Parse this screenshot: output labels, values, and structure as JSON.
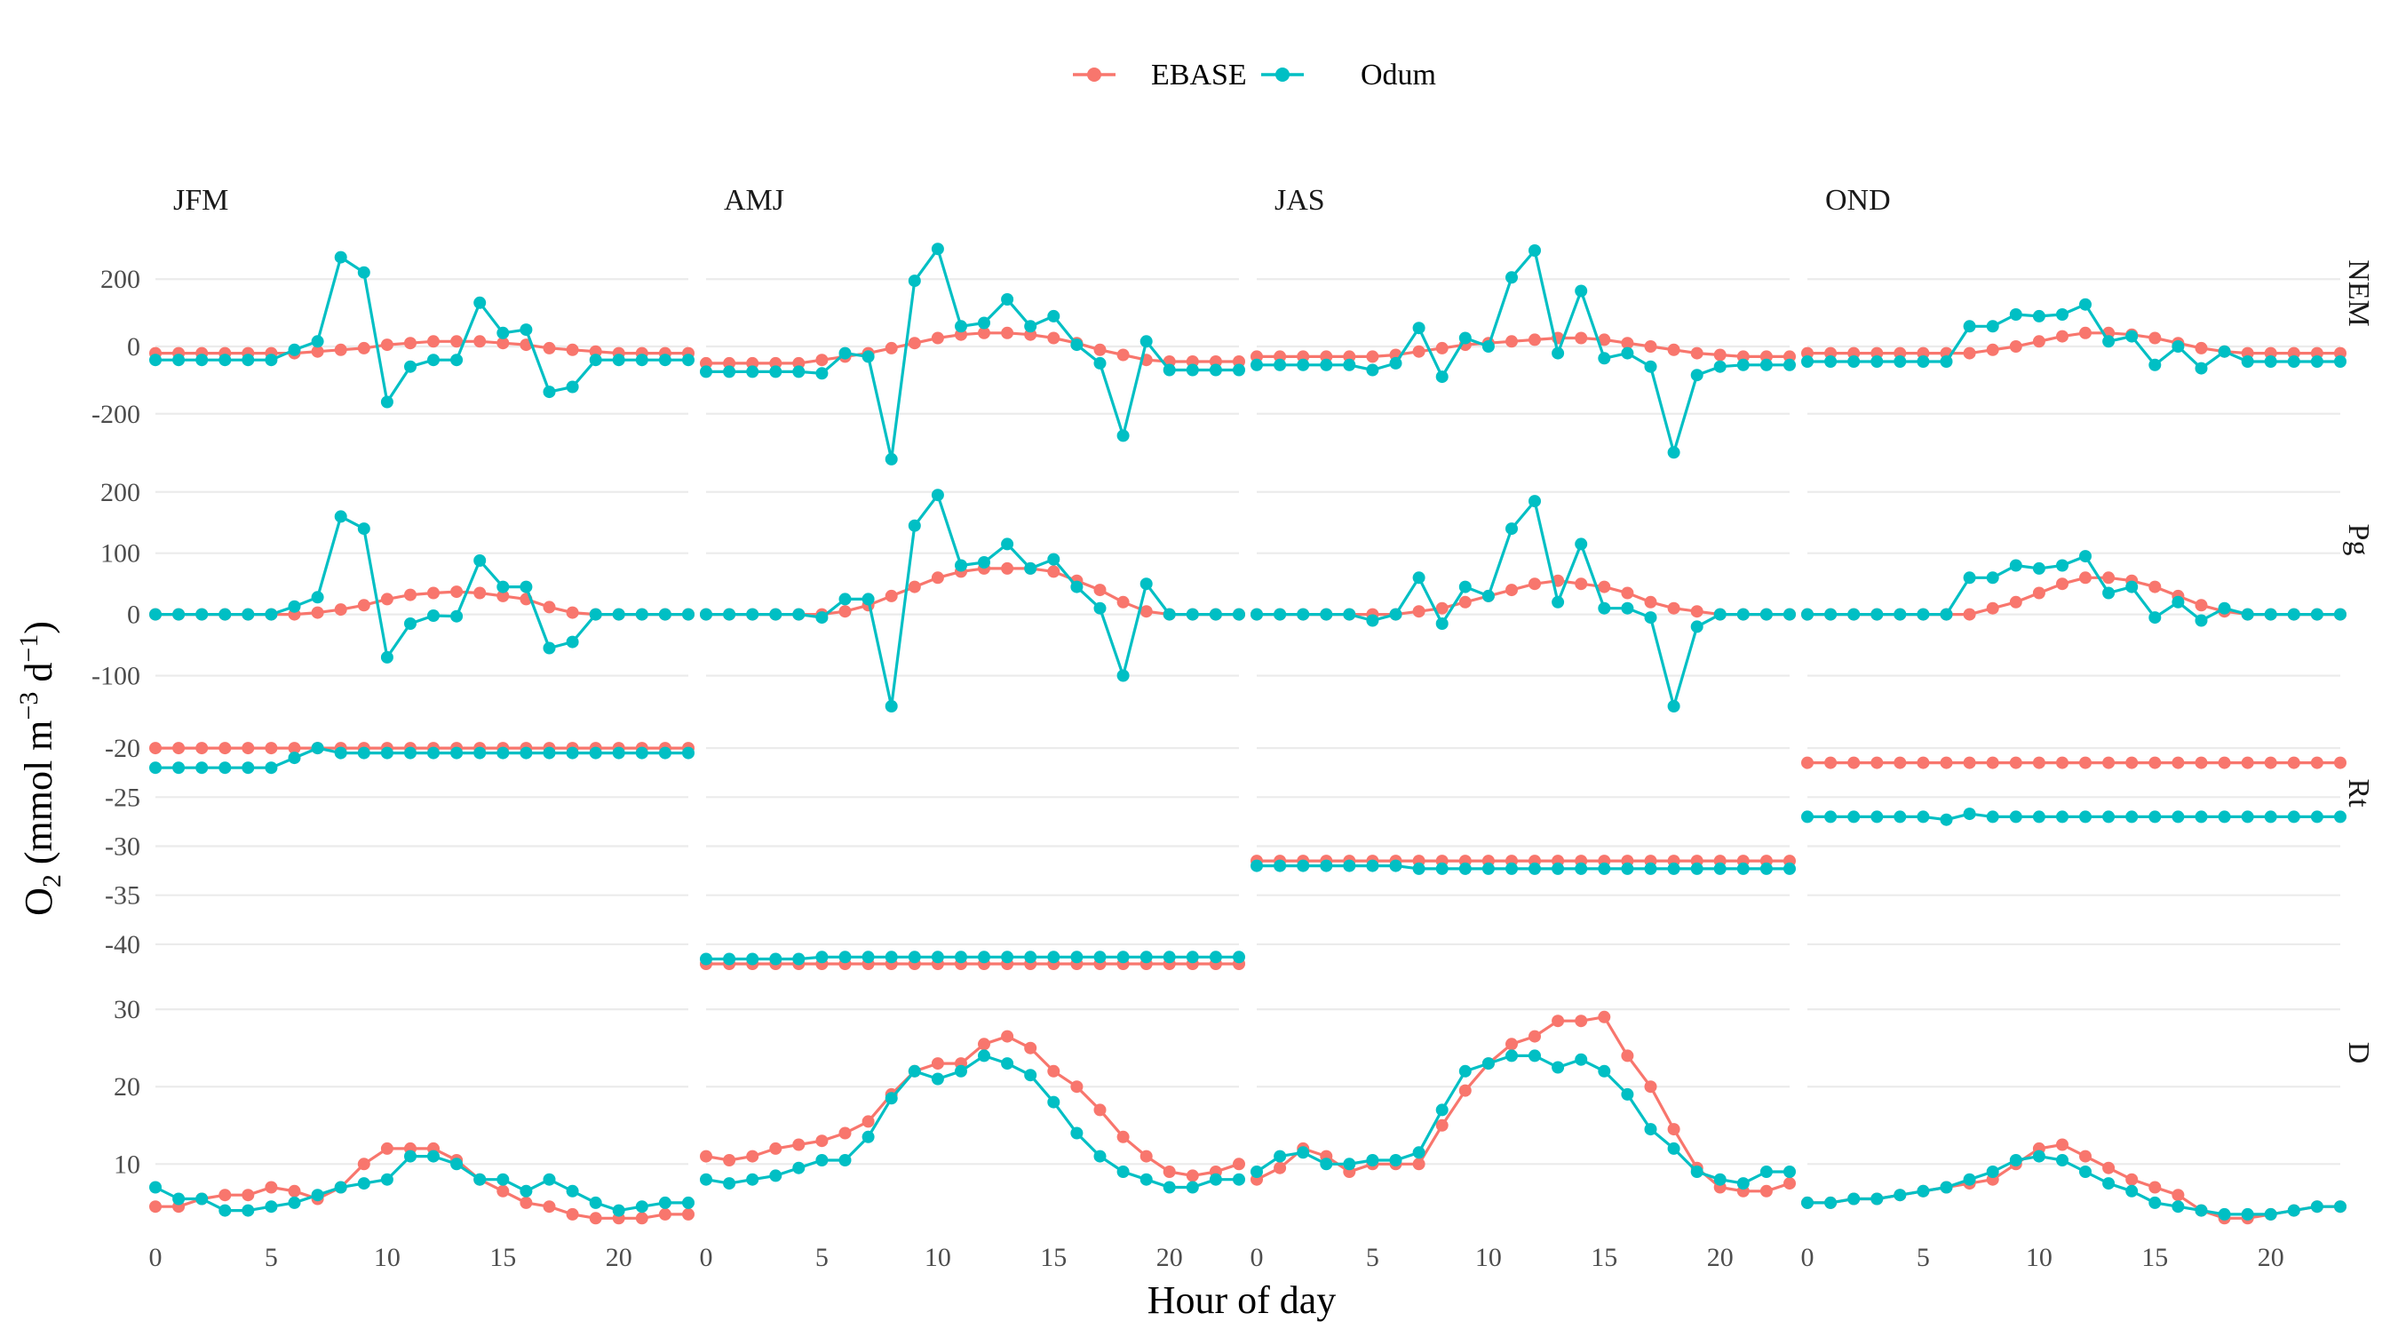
{
  "chart_data": {
    "type": "line",
    "legend": {
      "position": "top",
      "entries": [
        "EBASE",
        "Odum"
      ]
    },
    "colors": {
      "EBASE": "#F8766D",
      "Odum": "#00BFC4"
    },
    "xlabel": "Hour of day",
    "ylabel": "O2 (mmol m-3 d-1)",
    "ylabel_parts": {
      "o": "O",
      "sub": "2",
      "mid": " (mmol m",
      "sup1": "−3",
      "d": " d",
      "sup2": "−1",
      "close": ")"
    },
    "xlim": [
      0,
      23
    ],
    "x_ticks": [
      "0",
      "5",
      "10",
      "15",
      "20"
    ],
    "x": [
      0,
      1,
      2,
      3,
      4,
      5,
      6,
      7,
      8,
      9,
      10,
      11,
      12,
      13,
      14,
      15,
      16,
      17,
      18,
      19,
      20,
      21,
      22,
      23
    ],
    "columns": [
      "JFM",
      "AMJ",
      "JAS",
      "OND"
    ],
    "rows": [
      {
        "label": "NEM",
        "ylim": [
          -330,
          330
        ],
        "ticks": [
          200,
          0,
          -200
        ],
        "tick_labels": [
          "200",
          "0",
          "-200"
        ]
      },
      {
        "label": "Pg",
        "ylim": [
          -150,
          220
        ],
        "ticks": [
          200,
          100,
          0,
          -100
        ],
        "tick_labels": [
          "200",
          "100",
          "0",
          "-100"
        ]
      },
      {
        "label": "Rt",
        "ylim": [
          -42,
          -18
        ],
        "ticks": [
          -20,
          -25,
          -30,
          -35,
          -40
        ],
        "tick_labels": [
          "-20",
          "-25",
          "-30",
          "-35",
          "-40"
        ]
      },
      {
        "label": "D",
        "ylim": [
          2,
          33
        ],
        "ticks": [
          30,
          20,
          10
        ],
        "tick_labels": [
          "30",
          "20",
          "10"
        ]
      }
    ],
    "panels": {
      "NEM": {
        "JFM": {
          "EBASE": [
            -20,
            -20,
            -20,
            -20,
            -20,
            -20,
            -20,
            -15,
            -10,
            -5,
            5,
            10,
            15,
            15,
            15,
            10,
            5,
            -5,
            -10,
            -15,
            -20,
            -20,
            -20,
            -20
          ],
          "Odum": [
            -40,
            -40,
            -40,
            -40,
            -40,
            -40,
            -10,
            15,
            265,
            220,
            -165,
            -60,
            -40,
            -40,
            130,
            40,
            50,
            -135,
            -120,
            -40,
            -40,
            -40,
            -40,
            -40
          ]
        },
        "AMJ": {
          "EBASE": [
            -50,
            -50,
            -50,
            -50,
            -50,
            -40,
            -30,
            -20,
            -5,
            10,
            25,
            35,
            40,
            40,
            35,
            25,
            10,
            -10,
            -25,
            -40,
            -45,
            -45,
            -45,
            -45
          ],
          "Odum": [
            -75,
            -75,
            -75,
            -75,
            -75,
            -80,
            -20,
            -30,
            -335,
            195,
            290,
            60,
            70,
            140,
            60,
            90,
            5,
            -50,
            -265,
            15,
            -70,
            -70,
            -70,
            -70
          ]
        },
        "JAS": {
          "EBASE": [
            -30,
            -30,
            -30,
            -30,
            -30,
            -30,
            -25,
            -15,
            -5,
            5,
            10,
            15,
            20,
            25,
            25,
            20,
            10,
            0,
            -10,
            -20,
            -25,
            -30,
            -30,
            -30
          ],
          "Odum": [
            -55,
            -55,
            -55,
            -55,
            -55,
            -70,
            -50,
            55,
            -90,
            25,
            0,
            205,
            285,
            -20,
            165,
            -35,
            -20,
            -60,
            -315,
            -85,
            -60,
            -55,
            -55,
            -55
          ],
          "Odum_note": ""
        },
        "OND": {
          "EBASE": [
            -20,
            -20,
            -20,
            -20,
            -20,
            -20,
            -20,
            -20,
            -10,
            0,
            15,
            30,
            40,
            40,
            35,
            25,
            10,
            -5,
            -15,
            -20,
            -20,
            -20,
            -20,
            -20
          ],
          "Odum": [
            -45,
            -45,
            -45,
            -45,
            -45,
            -45,
            -45,
            60,
            60,
            95,
            90,
            95,
            125,
            15,
            30,
            -55,
            0,
            -65,
            -15,
            -45,
            -45,
            -45,
            -45,
            -45
          ]
        }
      },
      "Pg": {
        "JFM": {
          "EBASE": [
            0,
            0,
            0,
            0,
            0,
            0,
            0,
            3,
            8,
            15,
            25,
            32,
            35,
            37,
            35,
            30,
            25,
            12,
            3,
            0,
            0,
            0,
            0,
            0
          ],
          "Odum": [
            0,
            0,
            0,
            0,
            0,
            0,
            13,
            28,
            160,
            140,
            -70,
            -15,
            -2,
            -3,
            88,
            45,
            45,
            -55,
            -45,
            0,
            0,
            0,
            0,
            0
          ]
        },
        "AMJ": {
          "EBASE": [
            0,
            0,
            0,
            0,
            0,
            0,
            5,
            15,
            30,
            45,
            60,
            70,
            75,
            75,
            75,
            70,
            55,
            40,
            20,
            5,
            0,
            0,
            0,
            0
          ],
          "Odum": [
            0,
            0,
            0,
            0,
            0,
            -5,
            25,
            25,
            -150,
            145,
            195,
            80,
            85,
            115,
            75,
            90,
            45,
            10,
            -100,
            50,
            0,
            0,
            0,
            0
          ]
        },
        "JAS": {
          "EBASE": [
            0,
            0,
            0,
            0,
            0,
            0,
            0,
            5,
            10,
            20,
            30,
            40,
            50,
            55,
            50,
            45,
            35,
            20,
            10,
            5,
            0,
            0,
            0,
            0
          ],
          "Odum": [
            0,
            0,
            0,
            0,
            0,
            -10,
            0,
            60,
            -15,
            45,
            30,
            140,
            185,
            20,
            115,
            10,
            10,
            -5,
            -150,
            -20,
            0,
            0,
            0,
            0
          ]
        },
        "OND": {
          "EBASE": [
            0,
            0,
            0,
            0,
            0,
            0,
            0,
            0,
            10,
            20,
            35,
            50,
            60,
            60,
            55,
            45,
            30,
            15,
            5,
            0,
            0,
            0,
            0,
            0
          ],
          "Odum": [
            0,
            0,
            0,
            0,
            0,
            0,
            0,
            60,
            60,
            80,
            75,
            80,
            95,
            35,
            45,
            -5,
            20,
            -10,
            10,
            0,
            0,
            0,
            0,
            0
          ]
        }
      },
      "Rt": {
        "JFM": {
          "EBASE": [
            -20,
            -20,
            -20,
            -20,
            -20,
            -20,
            -20,
            -20,
            -20,
            -20,
            -20,
            -20,
            -20,
            -20,
            -20,
            -20,
            -20,
            -20,
            -20,
            -20,
            -20,
            -20,
            -20,
            -20
          ],
          "Odum": [
            -22,
            -22,
            -22,
            -22,
            -22,
            -22,
            -21,
            -20,
            -20.5,
            -20.5,
            -20.5,
            -20.5,
            -20.5,
            -20.5,
            -20.5,
            -20.5,
            -20.5,
            -20.5,
            -20.5,
            -20.5,
            -20.5,
            -20.5,
            -20.5,
            -20.5
          ]
        },
        "AMJ": {
          "EBASE": [
            -42,
            -42,
            -42,
            -42,
            -42,
            -42,
            -42,
            -42,
            -42,
            -42,
            -42,
            -42,
            -42,
            -42,
            -42,
            -42,
            -42,
            -42,
            -42,
            -42,
            -42,
            -42,
            -42,
            -42
          ],
          "Odum": [
            -41.5,
            -41.5,
            -41.5,
            -41.5,
            -41.5,
            -41.3,
            -41.3,
            -41.3,
            -41.3,
            -41.3,
            -41.3,
            -41.3,
            -41.3,
            -41.3,
            -41.3,
            -41.3,
            -41.3,
            -41.3,
            -41.3,
            -41.3,
            -41.3,
            -41.3,
            -41.3,
            -41.3
          ]
        },
        "JAS": {
          "EBASE": [
            -31.5,
            -31.5,
            -31.5,
            -31.5,
            -31.5,
            -31.5,
            -31.5,
            -31.5,
            -31.5,
            -31.5,
            -31.5,
            -31.5,
            -31.5,
            -31.5,
            -31.5,
            -31.5,
            -31.5,
            -31.5,
            -31.5,
            -31.5,
            -31.5,
            -31.5,
            -31.5,
            -31.5
          ],
          "Odum": [
            -32,
            -32,
            -32,
            -32,
            -32,
            -32,
            -32,
            -32.3,
            -32.3,
            -32.3,
            -32.3,
            -32.3,
            -32.3,
            -32.3,
            -32.3,
            -32.3,
            -32.3,
            -32.3,
            -32.3,
            -32.3,
            -32.3,
            -32.3,
            -32.3,
            -32.3
          ]
        },
        "OND": {
          "EBASE": [
            -21.5,
            -21.5,
            -21.5,
            -21.5,
            -21.5,
            -21.5,
            -21.5,
            -21.5,
            -21.5,
            -21.5,
            -21.5,
            -21.5,
            -21.5,
            -21.5,
            -21.5,
            -21.5,
            -21.5,
            -21.5,
            -21.5,
            -21.5,
            -21.5,
            -21.5,
            -21.5,
            -21.5
          ],
          "Odum": [
            -27,
            -27,
            -27,
            -27,
            -27,
            -27,
            -27.3,
            -26.7,
            -27,
            -27,
            -27,
            -27,
            -27,
            -27,
            -27,
            -27,
            -27,
            -27,
            -27,
            -27,
            -27,
            -27,
            -27,
            -27
          ]
        }
      },
      "D": {
        "JFM": {
          "EBASE": [
            4.5,
            4.5,
            5.5,
            6,
            6,
            7,
            6.5,
            5.5,
            7,
            10,
            12,
            12,
            12,
            10.5,
            8,
            6.5,
            5,
            4.5,
            3.5,
            3,
            3,
            3,
            3.5,
            3.5
          ],
          "Odum": [
            7,
            5.5,
            5.5,
            4,
            4,
            4.5,
            5,
            6,
            7,
            7.5,
            8,
            11,
            11,
            10,
            8,
            8,
            6.5,
            8,
            6.5,
            5,
            4,
            4.5,
            5,
            5
          ]
        },
        "AMJ": {
          "EBASE": [
            11,
            10.5,
            11,
            12,
            12.5,
            13,
            14,
            15.5,
            19,
            22,
            23,
            23,
            25.5,
            26.5,
            25,
            22,
            20,
            17,
            13.5,
            11,
            9,
            8.5,
            9,
            10
          ],
          "Odum": [
            8,
            7.5,
            8,
            8.5,
            9.5,
            10.5,
            10.5,
            13.5,
            18.5,
            22,
            21,
            22,
            24,
            23,
            21.5,
            18,
            14,
            11,
            9,
            8,
            7,
            7,
            8,
            8
          ]
        },
        "JAS": {
          "EBASE": [
            8,
            9.5,
            12,
            11,
            9,
            10,
            10,
            10,
            15,
            19.5,
            23,
            25.5,
            26.5,
            28.5,
            28.5,
            29,
            24,
            20,
            14.5,
            9.5,
            7,
            6.5,
            6.5,
            7.5
          ],
          "Odum": [
            9,
            11,
            11.5,
            10,
            10,
            10.5,
            10.5,
            11.5,
            17,
            22,
            23,
            24,
            24,
            22.5,
            23.5,
            22,
            19,
            14.5,
            12,
            9,
            8,
            7.5,
            9,
            9
          ]
        },
        "OND": {
          "EBASE": [
            5,
            5,
            5.5,
            5.5,
            6,
            6.5,
            7,
            7.5,
            8,
            10,
            12,
            12.5,
            11,
            9.5,
            8,
            7,
            6,
            4,
            3,
            3,
            3.5,
            4,
            4.5,
            4.5
          ],
          "Odum": [
            5,
            5,
            5.5,
            5.5,
            6,
            6.5,
            7,
            8,
            9,
            10.5,
            11,
            10.5,
            9,
            7.5,
            6.5,
            5,
            4.5,
            4,
            3.5,
            3.5,
            3.5,
            4,
            4.5,
            4.5
          ]
        }
      }
    }
  }
}
